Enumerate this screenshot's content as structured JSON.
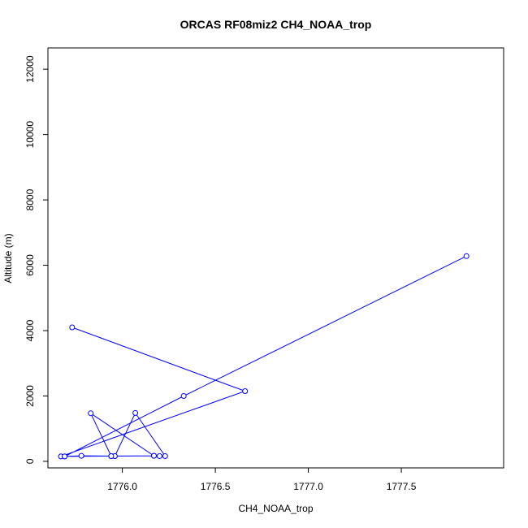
{
  "chart_data": {
    "type": "line",
    "title": "ORCAS RF08miz2 CH4_NOAA_trop",
    "xlabel": "CH4_NOAA_trop",
    "ylabel": "Altitude (m)",
    "xlim": [
      1775.6,
      1778.05
    ],
    "ylim": [
      -200,
      12650
    ],
    "xticks": [
      1776.0,
      1776.5,
      1777.0,
      1777.5
    ],
    "xtick_labels": [
      "1776.0",
      "1776.5",
      "1777.0",
      "1777.5"
    ],
    "yticks": [
      0,
      2000,
      4000,
      6000,
      8000,
      10000,
      12000
    ],
    "ytick_labels": [
      "0",
      "2000",
      "4000",
      "6000",
      "8000",
      "10000",
      "12000"
    ],
    "grid": false,
    "series": [
      {
        "color": "#0000ff",
        "marker": "open-circle",
        "x": [
          1775.73,
          1776.66,
          1775.67,
          1775.69,
          1775.78,
          1775.94,
          1775.96,
          1776.17,
          1776.2,
          1776.23,
          1776.07,
          1775.96,
          1775.94,
          1775.83,
          1776.17,
          1775.69,
          1776.33,
          1777.85
        ],
        "y": [
          4100,
          2150,
          150,
          150,
          170,
          160,
          160,
          170,
          160,
          160,
          1480,
          160,
          160,
          1470,
          170,
          150,
          2000,
          6280
        ]
      }
    ]
  }
}
